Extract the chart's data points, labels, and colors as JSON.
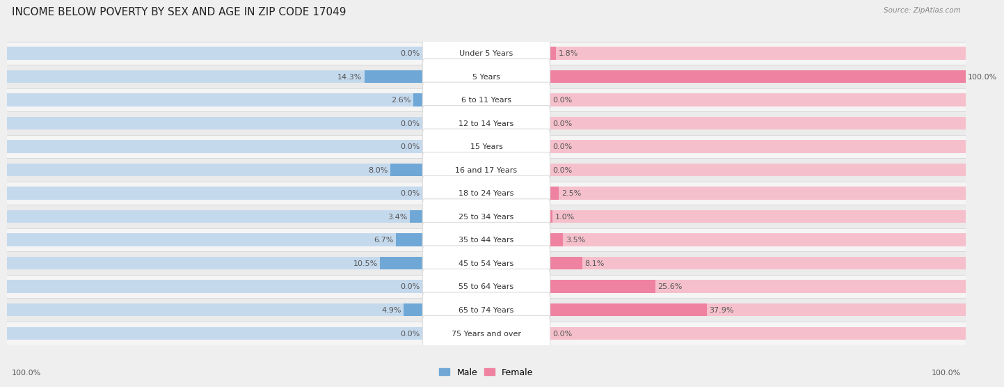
{
  "title": "INCOME BELOW POVERTY BY SEX AND AGE IN ZIP CODE 17049",
  "source": "Source: ZipAtlas.com",
  "categories": [
    "Under 5 Years",
    "5 Years",
    "6 to 11 Years",
    "12 to 14 Years",
    "15 Years",
    "16 and 17 Years",
    "18 to 24 Years",
    "25 to 34 Years",
    "35 to 44 Years",
    "45 to 54 Years",
    "55 to 64 Years",
    "65 to 74 Years",
    "75 Years and over"
  ],
  "male_values": [
    0.0,
    14.3,
    2.6,
    0.0,
    0.0,
    8.0,
    0.0,
    3.4,
    6.7,
    10.5,
    0.0,
    4.9,
    0.0
  ],
  "female_values": [
    1.8,
    100.0,
    0.0,
    0.0,
    0.0,
    0.0,
    2.5,
    1.0,
    3.5,
    8.1,
    25.6,
    37.9,
    0.0
  ],
  "male_bg_color": "#c5d9ed",
  "female_bg_color": "#f5c0cc",
  "male_bar_color": "#6fa8d6",
  "female_bar_color": "#ee82a0",
  "row_light_bg": "#f0f0f0",
  "row_dark_bg": "#e8e8e8",
  "separator_color": "#d0d0d0",
  "label_bg": "#ffffff",
  "title_fontsize": 11,
  "label_fontsize": 8,
  "value_fontsize": 8,
  "max_value": 100.0,
  "legend_male": "Male",
  "legend_female": "Female",
  "left_pct_label": "100.0%",
  "right_pct_label": "100.0%"
}
